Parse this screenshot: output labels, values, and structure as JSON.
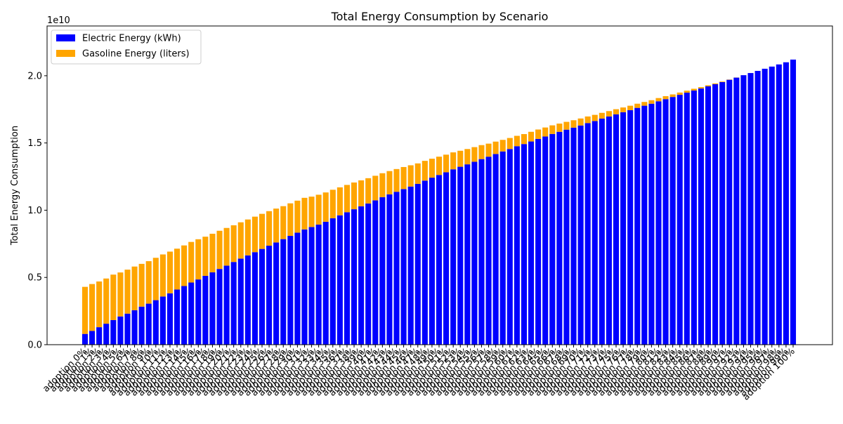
{
  "chart_data": {
    "type": "bar",
    "stacked": true,
    "title": "Total Energy Consumption by Scenario",
    "xlabel": "",
    "ylabel": "Total Energy Consumption",
    "y_offset_label": "1e10",
    "ylim": [
      0,
      2.37
    ],
    "y_ticks": [
      0.0,
      0.5,
      1.0,
      1.5,
      2.0
    ],
    "y_tick_labels": [
      "0.0",
      "0.5",
      "1.0",
      "1.5",
      "2.0"
    ],
    "legend_position": "upper-left",
    "grid": false,
    "x_label_first": "adoption 0%",
    "x_label_last": "adoption 100%",
    "categories": [
      "adoption 0%",
      "adoption 1%",
      "adoption 2%",
      "adoption 3%",
      "adoption 4%",
      "adoption 5%",
      "adoption 6%",
      "adoption 7%",
      "adoption 8%",
      "adoption 9%",
      "adoption 10%",
      "adoption 11%",
      "adoption 12%",
      "adoption 13%",
      "adoption 14%",
      "adoption 15%",
      "adoption 16%",
      "adoption 17%",
      "adoption 18%",
      "adoption 19%",
      "adoption 20%",
      "adoption 21%",
      "adoption 22%",
      "adoption 23%",
      "adoption 24%",
      "adoption 25%",
      "adoption 26%",
      "adoption 27%",
      "adoption 28%",
      "adoption 29%",
      "adoption 30%",
      "adoption 31%",
      "adoption 32%",
      "adoption 33%",
      "adoption 34%",
      "adoption 35%",
      "adoption 36%",
      "adoption 37%",
      "adoption 38%",
      "adoption 39%",
      "adoption 40%",
      "adoption 41%",
      "adoption 42%",
      "adoption 43%",
      "adoption 44%",
      "adoption 45%",
      "adoption 46%",
      "adoption 47%",
      "adoption 48%",
      "adoption 49%",
      "adoption 50%",
      "adoption 51%",
      "adoption 52%",
      "adoption 53%",
      "adoption 54%",
      "adoption 55%",
      "adoption 56%",
      "adoption 57%",
      "adoption 58%",
      "adoption 59%",
      "adoption 60%",
      "adoption 61%",
      "adoption 62%",
      "adoption 63%",
      "adoption 64%",
      "adoption 65%",
      "adoption 66%",
      "adoption 67%",
      "adoption 68%",
      "adoption 69%",
      "adoption 70%",
      "adoption 71%",
      "adoption 72%",
      "adoption 73%",
      "adoption 74%",
      "adoption 75%",
      "adoption 76%",
      "adoption 77%",
      "adoption 78%",
      "adoption 79%",
      "adoption 80%",
      "adoption 81%",
      "adoption 82%",
      "adoption 83%",
      "adoption 84%",
      "adoption 85%",
      "adoption 86%",
      "adoption 87%",
      "adoption 88%",
      "adoption 89%",
      "adoption 90%",
      "adoption 91%",
      "adoption 92%",
      "adoption 93%",
      "adoption 94%",
      "adoption 95%",
      "adoption 96%",
      "adoption 97%",
      "adoption 98%",
      "adoption 99%",
      "adoption 100%"
    ],
    "series": [
      {
        "name": "Electric Energy (kWh)",
        "color": "#0000ff",
        "values": [
          0.08,
          0.102,
          0.13,
          0.156,
          0.183,
          0.21,
          0.231,
          0.256,
          0.283,
          0.305,
          0.331,
          0.358,
          0.382,
          0.41,
          0.436,
          0.462,
          0.485,
          0.512,
          0.538,
          0.563,
          0.588,
          0.615,
          0.64,
          0.664,
          0.688,
          0.712,
          0.736,
          0.76,
          0.785,
          0.809,
          0.833,
          0.857,
          0.875,
          0.893,
          0.914,
          0.94,
          0.962,
          0.985,
          1.007,
          1.029,
          1.05,
          1.073,
          1.097,
          1.118,
          1.137,
          1.157,
          1.176,
          1.196,
          1.22,
          1.242,
          1.262,
          1.282,
          1.304,
          1.323,
          1.341,
          1.36,
          1.38,
          1.398,
          1.418,
          1.437,
          1.455,
          1.476,
          1.492,
          1.511,
          1.53,
          1.548,
          1.567,
          1.583,
          1.599,
          1.614,
          1.63,
          1.648,
          1.663,
          1.681,
          1.697,
          1.713,
          1.729,
          1.744,
          1.761,
          1.777,
          1.792,
          1.81,
          1.826,
          1.842,
          1.858,
          1.874,
          1.89,
          1.905,
          1.921,
          1.937,
          1.953,
          1.97,
          1.986,
          2.004,
          2.02,
          2.036,
          2.052,
          2.068,
          2.084,
          2.1,
          2.12
        ]
      },
      {
        "name": "Gasoline Energy (liters)",
        "color": "#ffa500",
        "values": [
          0.35,
          0.349,
          0.34,
          0.336,
          0.338,
          0.327,
          0.327,
          0.325,
          0.318,
          0.316,
          0.315,
          0.313,
          0.31,
          0.304,
          0.302,
          0.302,
          0.299,
          0.291,
          0.287,
          0.284,
          0.28,
          0.273,
          0.27,
          0.267,
          0.264,
          0.261,
          0.257,
          0.252,
          0.245,
          0.242,
          0.238,
          0.235,
          0.226,
          0.222,
          0.218,
          0.212,
          0.208,
          0.203,
          0.199,
          0.193,
          0.188,
          0.183,
          0.178,
          0.173,
          0.169,
          0.164,
          0.158,
          0.152,
          0.147,
          0.141,
          0.136,
          0.131,
          0.126,
          0.119,
          0.114,
          0.109,
          0.104,
          0.097,
          0.092,
          0.086,
          0.082,
          0.077,
          0.074,
          0.072,
          0.07,
          0.067,
          0.064,
          0.061,
          0.058,
          0.055,
          0.052,
          0.049,
          0.046,
          0.043,
          0.04,
          0.038,
          0.035,
          0.033,
          0.031,
          0.028,
          0.026,
          0.024,
          0.022,
          0.019,
          0.017,
          0.015,
          0.013,
          0.01,
          0.008,
          0.006,
          0.004,
          0.002,
          0.001,
          0.0,
          0.0,
          0.0,
          0.0,
          0.0,
          0.0,
          0.0,
          0.0
        ]
      }
    ]
  }
}
